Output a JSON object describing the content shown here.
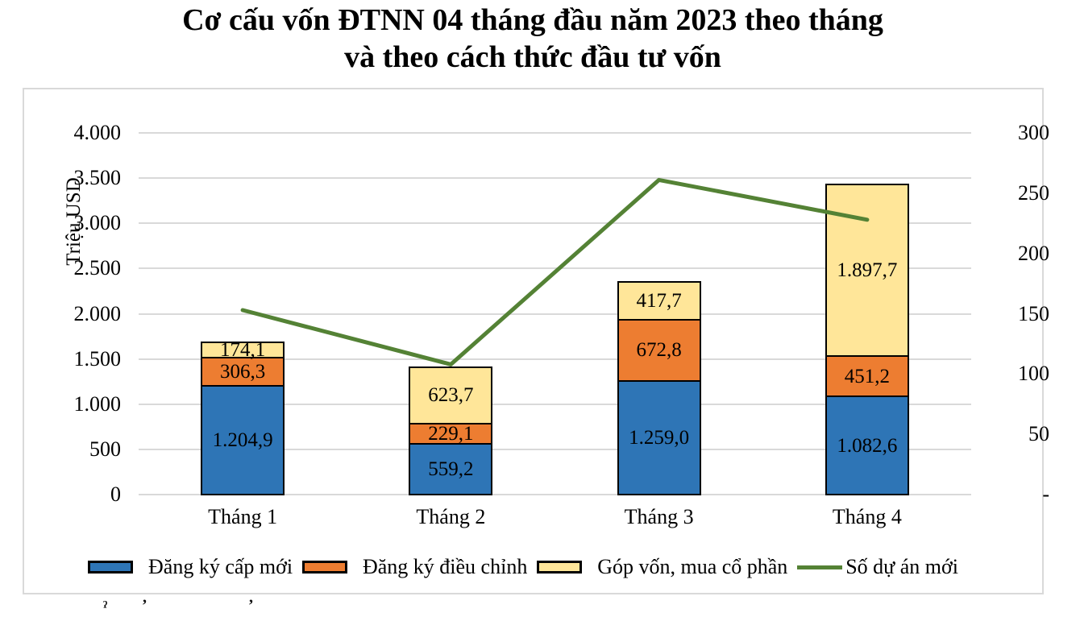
{
  "title": {
    "line1": "Cơ cấu vốn ĐTNN 04 tháng đầu năm 2023 theo tháng",
    "line2": "và theo cách thức đầu tư vốn"
  },
  "chart_data": {
    "type": "bar",
    "subtype": "stacked-bars-with-line-overlay",
    "categories": [
      "Tháng 1",
      "Tháng 2",
      "Tháng 3",
      "Tháng 4"
    ],
    "series": [
      {
        "name": "Đăng ký cấp mới",
        "type": "bar",
        "color": "#2e75b6",
        "values": [
          1204.9,
          559.2,
          1259.0,
          1082.6
        ],
        "labels": [
          "1.204,9",
          "559,2",
          "1.259,0",
          "1.082,6"
        ]
      },
      {
        "name": "Đăng ký điều chỉnh",
        "type": "bar",
        "color": "#ed7d31",
        "values": [
          306.3,
          229.1,
          672.8,
          451.2
        ],
        "labels": [
          "306,3",
          "229,1",
          "672,8",
          "451,2"
        ]
      },
      {
        "name": "Góp vốn, mua cổ phần",
        "type": "bar",
        "color": "#ffe699",
        "values": [
          174.1,
          623.7,
          417.7,
          1897.7
        ],
        "labels": [
          "174,1",
          "623,7",
          "417,7",
          "1.897,7"
        ]
      },
      {
        "name": "Số dự án mới",
        "type": "line",
        "color": "#548235",
        "axis": "right",
        "values": [
          153,
          108,
          261,
          228
        ]
      }
    ],
    "left_axis": {
      "label": "Triệu USD",
      "min": 0,
      "max": 4000,
      "step": 500,
      "ticks": [
        "4.000",
        "3.500",
        "3.000",
        "2.500",
        "2.000",
        "1.500",
        "1.000",
        "500",
        "0"
      ]
    },
    "right_axis": {
      "min": 0,
      "max": 300,
      "step": 50,
      "ticks": [
        "300",
        "250",
        "200",
        "150",
        "100",
        "50",
        "-"
      ]
    },
    "grid": true,
    "legend_position": "bottom",
    "colors": {
      "gridline": "#d9d9d9",
      "panel_border": "#d9d9d9",
      "bar_border": "#000000"
    }
  },
  "cropped_bottom_fragments": [
    "ˀ",
    "ʼ",
    "ʼ"
  ]
}
